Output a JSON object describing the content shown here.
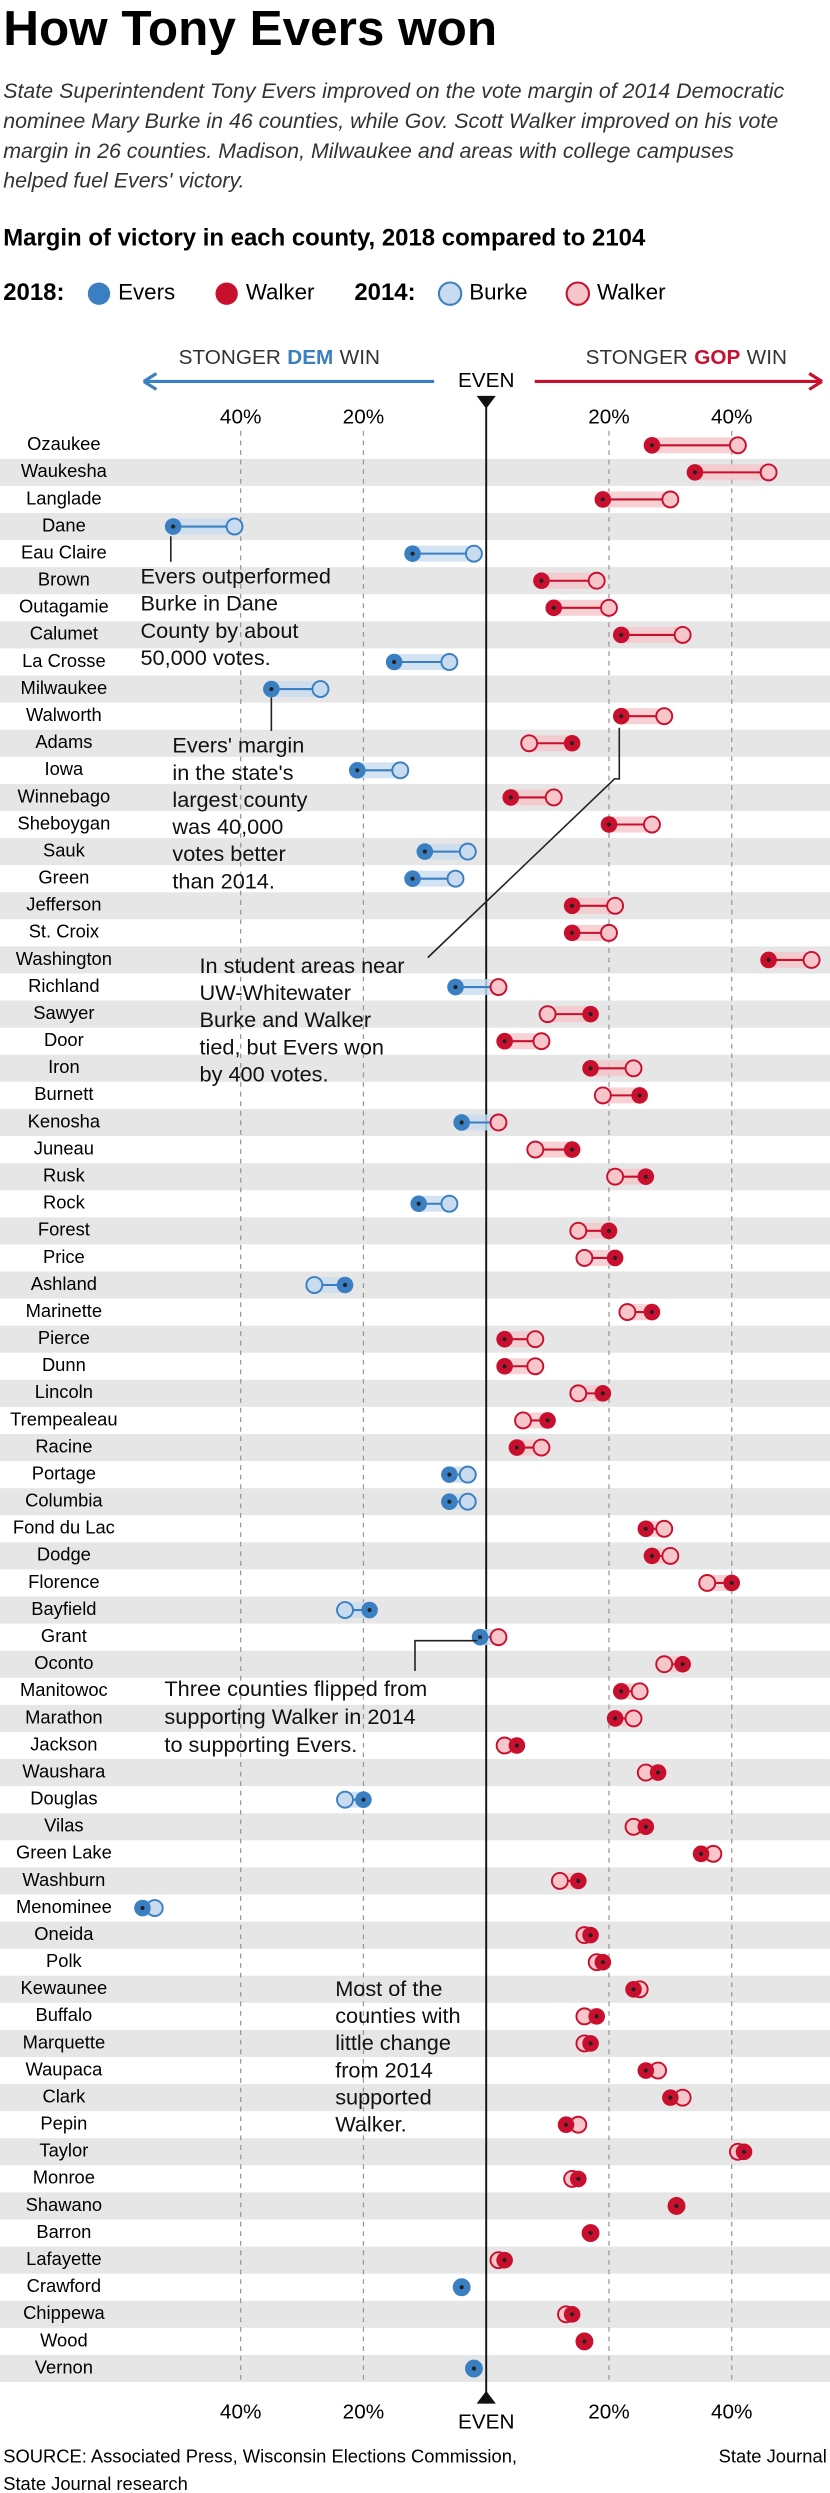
{
  "chart_data": {
    "type": "dot",
    "title": "How Tony Evers won",
    "subtitle": [
      "State Superintendent Tony Evers improved on the vote margin of 2014 Democratic",
      "nominee Mary Burke in 46 counties, while Gov. Scott Walker improved on his vote",
      "margin in 26 counties. Madison, Milwaukee and areas with college campuses",
      "helped fuel Evers' victory."
    ],
    "chart_title": "Margin of victory in each county, 2018 compared to 2104",
    "legend": [
      {
        "year": "2018:",
        "items": [
          "Evers",
          "Walker"
        ]
      },
      {
        "year": "2014:",
        "items": [
          "Burke",
          "Walker"
        ]
      }
    ],
    "dem_label": {
      "pre": "STONGER",
      "emph": "DEM",
      "post": "WIN"
    },
    "gop_label": {
      "pre": "STONGER",
      "emph": "GOP",
      "post": "WIN"
    },
    "center_label": "EVEN",
    "dem_color": "#3a7fc1",
    "gop_color": "#c8102e",
    "dem_light": "#c9dcef",
    "gop_light": "#f6c6ca",
    "xlim": [
      -74,
      56
    ],
    "xticks": [
      {
        "value": -40,
        "label": "40%"
      },
      {
        "value": -20,
        "label": "20%"
      },
      {
        "value": 20,
        "label": "20%"
      },
      {
        "value": 40,
        "label": "40%"
      }
    ],
    "grid": true,
    "categories": [
      "Ozaukee",
      "Waukesha",
      "Langlade",
      "Dane",
      "Eau Claire",
      "Brown",
      "Outagamie",
      "Calumet",
      "La Crosse",
      "Milwaukee",
      "Walworth",
      "Adams",
      "Iowa",
      "Winnebago",
      "Sheboygan",
      "Sauk",
      "Green",
      "Jefferson",
      "St. Croix",
      "Washington",
      "Richland",
      "Sawyer",
      "Door",
      "Iron",
      "Burnett",
      "Kenosha",
      "Juneau",
      "Rusk",
      "Rock",
      "Forest",
      "Price",
      "Ashland",
      "Marinette",
      "Pierce",
      "Dunn",
      "Lincoln",
      "Trempealeau",
      "Racine",
      "Portage",
      "Columbia",
      "Fond du Lac",
      "Dodge",
      "Florence",
      "Bayfield",
      "Grant",
      "Oconto",
      "Manitowoc",
      "Marathon",
      "Jackson",
      "Waushara",
      "Douglas",
      "Vilas",
      "Green Lake",
      "Washburn",
      "Menominee",
      "Oneida",
      "Polk",
      "Kewaunee",
      "Buffalo",
      "Marquette",
      "Waupaca",
      "Clark",
      "Pepin",
      "Taylor",
      "Monroe",
      "Shawano",
      "Barron",
      "Lafayette",
      "Crawford",
      "Chippewa",
      "Wood",
      "Vernon"
    ],
    "series": [
      {
        "name": "2018",
        "values": [
          27,
          34,
          19,
          -51,
          -12,
          9,
          11,
          22,
          -15,
          -35,
          22,
          14,
          -21,
          4,
          20,
          -10,
          -12,
          14,
          14,
          46,
          -5,
          17,
          3,
          17,
          25,
          -4,
          14,
          26,
          -11,
          20,
          21,
          -23,
          27,
          3,
          3,
          19,
          10,
          5,
          -6,
          -6,
          26,
          27,
          40,
          -19,
          -1,
          32,
          22,
          21,
          5,
          28,
          -20,
          26,
          35,
          15,
          -56,
          17,
          19,
          24,
          18,
          17,
          26,
          30,
          13,
          42,
          15,
          31,
          17,
          3,
          -4,
          14,
          16,
          -2
        ]
      },
      {
        "name": "2014",
        "values": [
          41,
          46,
          30,
          -41,
          -2,
          18,
          20,
          32,
          -6,
          -27,
          29,
          7,
          -14,
          11,
          27,
          -3,
          -5,
          21,
          20,
          53,
          2,
          10,
          9,
          24,
          19,
          2,
          8,
          21,
          -6,
          15,
          16,
          -28,
          23,
          8,
          8,
          15,
          6,
          9,
          -3,
          -3,
          29,
          30,
          36,
          -23,
          2,
          29,
          25,
          24,
          3,
          26,
          -23,
          24,
          37,
          12,
          -54,
          16,
          18,
          25,
          16,
          16,
          28,
          32,
          15,
          41,
          14,
          31,
          17,
          2,
          -4,
          13,
          16,
          -2
        ]
      }
    ],
    "annotations": [
      [
        "Evers outperformed",
        "Burke in Dane",
        "County by about",
        "50,000 votes."
      ],
      [
        "Evers' margin",
        "in the state's",
        "largest county",
        "was 40,000",
        "votes better",
        "than 2014."
      ],
      [
        "In student areas near",
        "UW-Whitewater",
        "Burke and Walker",
        "tied, but Evers won",
        "by 400 votes."
      ],
      [
        "Three counties flipped from",
        "supporting Walker in 2014",
        "to supporting Evers."
      ],
      [
        "Most of the",
        "counties with",
        "little change",
        "from 2014",
        "supported",
        "Walker."
      ]
    ],
    "source": [
      "SOURCE: Associated Press, Wisconsin Elections Commission,",
      "State Journal research"
    ],
    "credit": "State Journal"
  }
}
